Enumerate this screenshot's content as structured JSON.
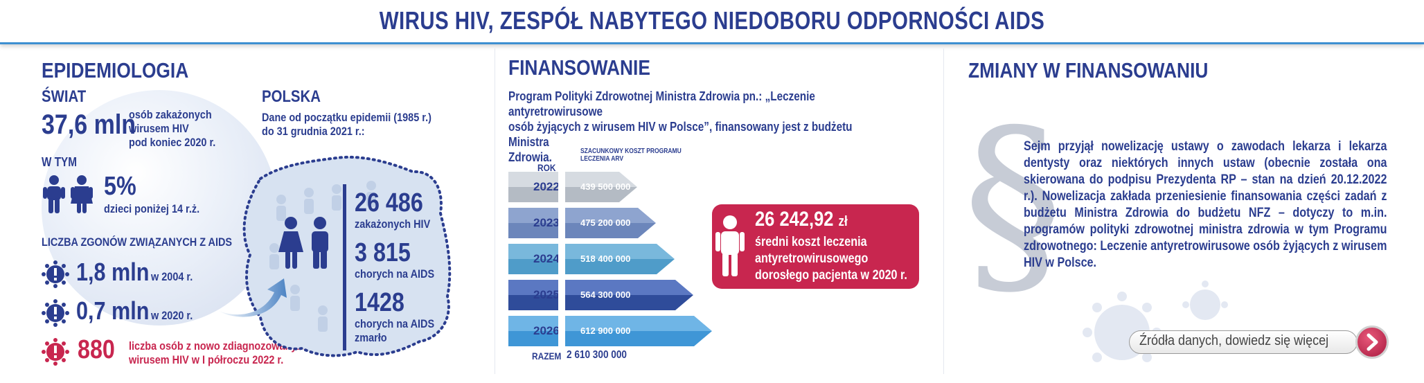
{
  "header": {
    "title": "WIRUS HIV, ZESPÓŁ NABYTEGO NIEDOBORU ODPORNOŚCI AIDS"
  },
  "epidemiologia": {
    "title": "EPIDEMIOLOGIA",
    "swiat": {
      "label": "ŚWIAT",
      "infected_value": "37,6 mln",
      "infected_desc": [
        "osób zakażonych",
        "wirusem HIV",
        "pod koniec 2020 r."
      ],
      "w_tym": "W TYM",
      "children_pct": "5%",
      "children_desc": "dzieci poniżej 14 r.ż.",
      "deaths_header": "LICZBA ZGONÓW ZWIĄZANYCH Z AIDS",
      "deaths": [
        {
          "value": "1,8 mln",
          "year": "w 2004 r."
        },
        {
          "value": "0,7 mln",
          "year": "w 2020 r."
        }
      ],
      "new_cases": {
        "value": "880",
        "desc": [
          "liczba osób z nowo zdiagnozowanym",
          "wirusem HIV w I półroczu 2022 r."
        ]
      }
    },
    "polska": {
      "label": "POLSKA",
      "desc": [
        "Dane od początku epidemii (1985 r.)",
        "do 31 grudnia 2021 r.:"
      ],
      "stats": [
        {
          "value": "26 486",
          "desc": [
            "zakażonych HIV"
          ]
        },
        {
          "value": "3 815",
          "desc": [
            "chorych na AIDS"
          ]
        },
        {
          "value": "1428",
          "desc": [
            "chorych na AIDS",
            "zmarło"
          ]
        }
      ]
    }
  },
  "finansowanie": {
    "title": "FINANSOWANIE",
    "desc": [
      "Program Polityki Zdrowotnej Ministra Zdrowia pn.: „Leczenie antyretrowirusowe",
      "osób żyjących z wirusem HIV w Polsce”, finansowany jest z budżetu Ministra",
      "Zdrowia."
    ],
    "col_year": "ROK",
    "col_cost": [
      "SZACUNKOWY KOSZT PROGRAMU",
      "LECZENIA ARV"
    ],
    "rows": [
      {
        "year": "2022",
        "cost": "439 500 000"
      },
      {
        "year": "2023",
        "cost": "475 200 000"
      },
      {
        "year": "2024",
        "cost": "518 400 000"
      },
      {
        "year": "2025",
        "cost": "564 300 000"
      },
      {
        "year": "2026",
        "cost": "612 900 000"
      }
    ],
    "total_label": "RAZEM",
    "total_value": "2 610 300 000",
    "avg_cost": {
      "value": "26 242,92",
      "unit": "zł",
      "desc": [
        "średni koszt leczenia",
        "antyretrowirusowego",
        "dorosłego pacjenta w 2020 r."
      ]
    }
  },
  "zmiany": {
    "title": "ZMIANY W FINANSOWANIU",
    "text": "Sejm przyjął nowelizację ustawy o zawodach lekarza i lekarza dentysty oraz niektórych innych ustaw (obecnie została ona skierowana do podpisu Prezydenta RP – stan na dzień 20.12.2022 r.). Nowelizacja zakłada przeniesienie finansowania części zadań z budżetu Ministra Zdrowia do budżetu NFZ – dotyczy to m.in. programów polityki zdrowotnej ministra zdrowia w tym Programu zdrowotnego: Leczenie antyretrowirusowe osób żyjących z wirusem HIV w Polsce.",
    "sources_button": "Źródła danych, dowiedz się więcej"
  },
  "colors": {
    "navy": "#2b3d8f",
    "crimson": "#c8264f",
    "accent_blue": "#3d8fd1"
  }
}
